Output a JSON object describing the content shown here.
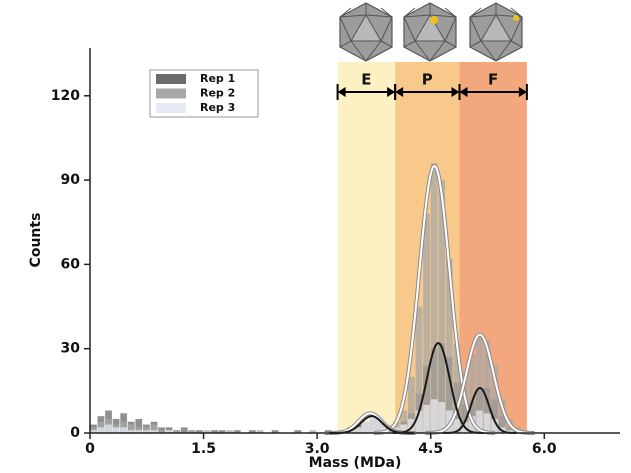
{
  "chart_data": {
    "type": "histogram",
    "xlabel": "Mass (MDa)",
    "ylabel": "Counts",
    "xlim": [
      0,
      7
    ],
    "ylim": [
      0,
      137
    ],
    "xticks": [
      0,
      1.5,
      {
        "value": 3,
        "label": "3.0"
      },
      4.5,
      {
        "value": 6,
        "label": "6.0"
      }
    ],
    "yticks": [
      0,
      30,
      60,
      90,
      120
    ],
    "bins": [
      0,
      0.1,
      0.2,
      0.3,
      0.4,
      0.5,
      0.6,
      0.7,
      0.8,
      0.9,
      1,
      1.1,
      1.2,
      1.3,
      1.4,
      1.5,
      1.6,
      1.7,
      1.8,
      1.9,
      2,
      2.1,
      2.2,
      2.3,
      2.4,
      2.5,
      2.6,
      2.7,
      2.8,
      2.9,
      3,
      3.1,
      3.2,
      3.3,
      3.4,
      3.5,
      3.6,
      3.7,
      3.8,
      3.9,
      4,
      4.1,
      4.2,
      4.3,
      4.4,
      4.5,
      4.6,
      4.7,
      4.8,
      4.9,
      5,
      5.1,
      5.2,
      5.3,
      5.4,
      5.5,
      5.6,
      5.7,
      5.8,
      5.9,
      6,
      6.1,
      6.2
    ],
    "series": [
      {
        "name": "Rep 1",
        "color": "#6b6b6b",
        "values": [
          3,
          6,
          8,
          5,
          7,
          4,
          5,
          3,
          4,
          2,
          2,
          1,
          2,
          1,
          1,
          0,
          1,
          1,
          0,
          1,
          0,
          1,
          0,
          0,
          1,
          0,
          0,
          1,
          0,
          0,
          0,
          1,
          0,
          1,
          2,
          3,
          4,
          5,
          4,
          3,
          2,
          4,
          7,
          14,
          24,
          30,
          32,
          27,
          18,
          10,
          11,
          15,
          16,
          12,
          6,
          2,
          1,
          0,
          0,
          0,
          0,
          0
        ]
      },
      {
        "name": "Rep 2",
        "color": "#a8a8a8",
        "values": [
          2,
          4,
          5,
          3,
          4,
          3,
          2,
          2,
          3,
          1,
          1,
          1,
          0,
          1,
          0,
          1,
          0,
          0,
          1,
          0,
          0,
          0,
          1,
          0,
          0,
          0,
          0,
          0,
          0,
          1,
          0,
          0,
          0,
          1,
          1,
          2,
          4,
          6,
          5,
          3,
          4,
          8,
          20,
          45,
          78,
          96,
          90,
          62,
          32,
          22,
          28,
          35,
          33,
          24,
          12,
          5,
          2,
          1,
          0,
          0,
          0,
          0
        ]
      },
      {
        "name": "Rep 3",
        "color": "#e6e9f3",
        "values": [
          1,
          2,
          3,
          2,
          2,
          1,
          1,
          1,
          1,
          0,
          1,
          0,
          0,
          0,
          0,
          0,
          0,
          0,
          0,
          0,
          0,
          0,
          0,
          0,
          0,
          0,
          0,
          0,
          0,
          0,
          0,
          0,
          0,
          0,
          1,
          2,
          5,
          7,
          6,
          3,
          2,
          3,
          5,
          8,
          10,
          12,
          11,
          8,
          5,
          4,
          6,
          8,
          7,
          5,
          2,
          1,
          0,
          0,
          0,
          0,
          0,
          0
        ]
      }
    ],
    "fits": [
      {
        "color": "#ffffff",
        "center": 4.55,
        "sigma": 0.2,
        "peak": 95
      },
      {
        "color": "#ffffff",
        "center": 5.15,
        "sigma": 0.18,
        "peak": 35
      },
      {
        "color": "#ffffff",
        "center": 3.7,
        "sigma": 0.15,
        "peak": 7
      },
      {
        "color": "#1a1a1a",
        "center": 4.6,
        "sigma": 0.15,
        "peak": 32
      },
      {
        "color": "#1a1a1a",
        "center": 5.15,
        "sigma": 0.12,
        "peak": 16
      },
      {
        "color": "#1a1a1a",
        "center": 3.72,
        "sigma": 0.14,
        "peak": 6
      }
    ],
    "regions": [
      {
        "label": "E",
        "start": 3.27,
        "end": 4.03,
        "color": "#fdf0c2"
      },
      {
        "label": "P",
        "start": 4.03,
        "end": 4.88,
        "color": "#f8c98a"
      },
      {
        "label": "F",
        "start": 4.88,
        "end": 5.77,
        "color": "#f2a77c"
      }
    ],
    "legend": "upper left"
  }
}
